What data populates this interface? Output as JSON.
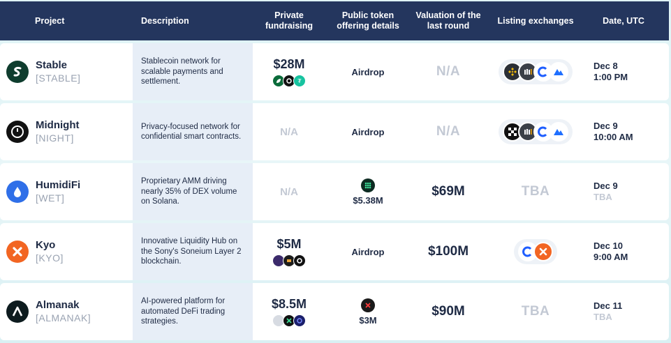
{
  "header": {
    "project": "Project",
    "description": "Description",
    "private_fundraising": "Private fundraising",
    "public_token": "Public token offering details",
    "valuation": "Valuation of the last round",
    "listing": "Listing exchanges",
    "date": "Date, UTC"
  },
  "rows": [
    {
      "name": "Stable",
      "ticker": "[STABLE]",
      "description": "Stablecoin network for scalable payments and settlement.",
      "private": "$28M",
      "public": "Airdrop",
      "valuation": "N/A",
      "date_line1": "Dec 8",
      "date_line2": "1:00 PM",
      "logo_color": "#0f3d2e"
    },
    {
      "name": "Midnight",
      "ticker": "[NIGHT]",
      "description": "Privacy-focused network for confidential smart contracts.",
      "private": "N/A",
      "public": "Airdrop",
      "valuation": "N/A",
      "date_line1": "Dec 9",
      "date_line2": "10:00 AM",
      "logo_color": "#111111"
    },
    {
      "name": "HumidiFi",
      "ticker": "[WET]",
      "description": "Proprietary AMM driving nearly 35% of DEX volume on Solana.",
      "private": "N/A",
      "public": "$5.38M",
      "valuation": "$69M",
      "listing": "TBA",
      "date_line1": "Dec 9",
      "date_line2": "TBA",
      "logo_color": "#2f6fe8"
    },
    {
      "name": "Kyo",
      "ticker": "[KYO]",
      "description": "Innovative Liquidity Hub on the Sony's Soneium Layer 2 blockchain.",
      "private": "$5M",
      "public": "Airdrop",
      "valuation": "$100M",
      "date_line1": "Dec 10",
      "date_line2": "9:00 AM",
      "logo_color": "#f26522"
    },
    {
      "name": "Almanak",
      "ticker": "[ALMANAK]",
      "description": "AI-powered platform for automated DeFi trading strategies.",
      "private": "$8.5M",
      "public": "$3M",
      "valuation": "$90M",
      "listing": "TBA",
      "date_line1": "Dec 11",
      "date_line2": "TBA",
      "logo_color": "#0d1b1e"
    }
  ],
  "colors": {
    "header_bg": "#24365e",
    "muted": "#c3c9d4",
    "binance": "#f0b90b",
    "coinex": "#1e5eff",
    "kucoin_blue": "#1f6fff"
  }
}
